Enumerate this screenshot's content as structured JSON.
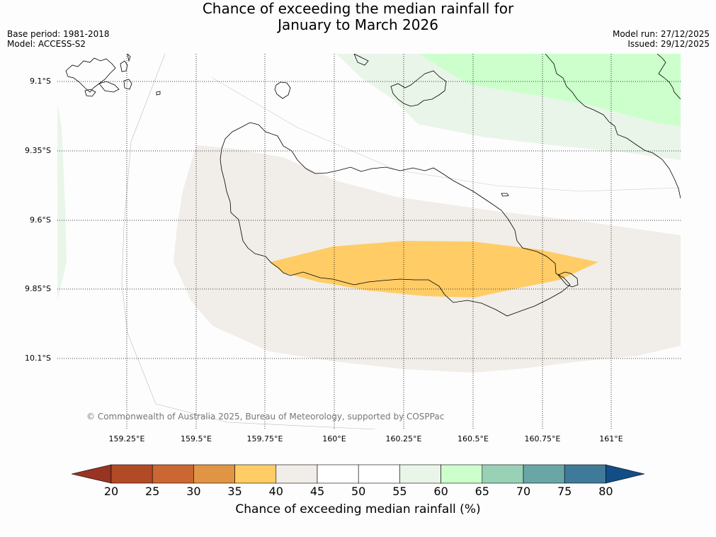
{
  "title": {
    "line1": "Chance of exceeding the median rainfall for",
    "line2": "January to March 2026"
  },
  "meta": {
    "base_period": "Base period: 1981-2018",
    "model": "Model: ACCESS-S2",
    "model_run": "Model run: 27/12/2025",
    "issued": "Issued: 29/12/2025"
  },
  "map": {
    "lat_labels": [
      "9.1°S",
      "9.35°S",
      "9.6°S",
      "9.85°S",
      "10.1°S"
    ],
    "lon_labels": [
      "159.25°E",
      "159.5°E",
      "159.75°E",
      "160°E",
      "160.25°E",
      "160.5°E",
      "160.75°E",
      "161°E"
    ],
    "copyright": "© Commonwealth of Australia 2025, Bureau of Meteorology, supported by COSPPac",
    "regions": [
      {
        "name": "35-40 %",
        "color": "#ffcc66"
      },
      {
        "name": "40-45 %",
        "color": "#f1ede8"
      },
      {
        "name": "55-60 %",
        "color": "#e9f5e9"
      },
      {
        "name": "60-65 %",
        "color": "#ccffcc"
      }
    ]
  },
  "colorbar": {
    "title": "Chance of exceeding median rainfall (%)",
    "ticks": [
      "20",
      "25",
      "30",
      "35",
      "40",
      "45",
      "50",
      "55",
      "60",
      "65",
      "70",
      "75",
      "80"
    ],
    "colors": [
      "#b34a26",
      "#cc6633",
      "#e09544",
      "#ffcc66",
      "#f1ede8",
      "#ffffff",
      "#ffffff",
      "#e9f5e9",
      "#ccffcc",
      "#99d1b7",
      "#6aa6a6",
      "#3f7a99"
    ],
    "low_color": "#993322",
    "high_color": "#124d85"
  }
}
